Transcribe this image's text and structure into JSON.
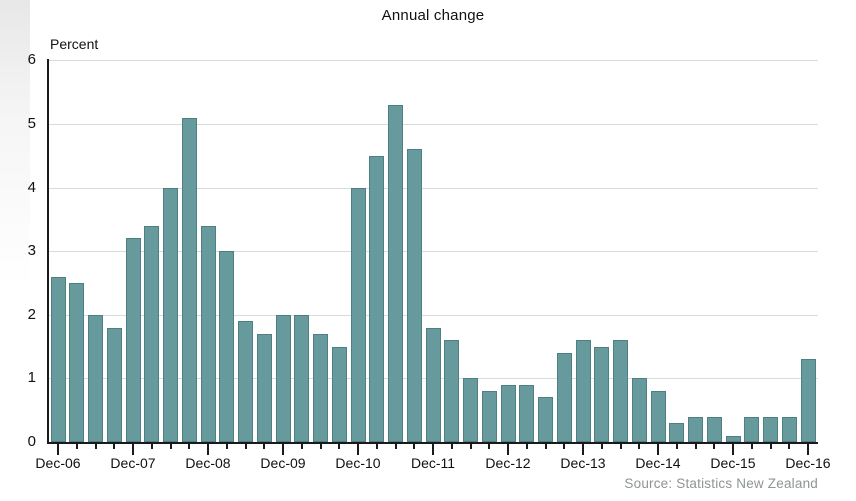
{
  "page": {
    "title": "Annual change",
    "source_note": "Source: Statistics New Zealand"
  },
  "chart_data": {
    "type": "bar",
    "title": "Annual change",
    "xlabel": "",
    "ylabel": "Percent",
    "ylim": [
      0,
      6
    ],
    "yticks": [
      0,
      1,
      2,
      3,
      4,
      5,
      6
    ],
    "grid": true,
    "legend_position": "none",
    "bar_color": "#679a9c",
    "bar_border_color": "#4e8083",
    "axis_color": "#1a1a1a",
    "gridline_color": "#d9dcdc",
    "x_major_tick_every": 4,
    "categories": [
      "Dec-06",
      "Mar-07",
      "Jun-07",
      "Sep-07",
      "Dec-07",
      "Mar-08",
      "Jun-08",
      "Sep-08",
      "Dec-08",
      "Mar-09",
      "Jun-09",
      "Sep-09",
      "Dec-09",
      "Mar-10",
      "Jun-10",
      "Sep-10",
      "Dec-10",
      "Mar-11",
      "Jun-11",
      "Sep-11",
      "Dec-11",
      "Mar-12",
      "Jun-12",
      "Sep-12",
      "Dec-12",
      "Mar-13",
      "Jun-13",
      "Sep-13",
      "Dec-13",
      "Mar-14",
      "Jun-14",
      "Sep-14",
      "Dec-14",
      "Mar-15",
      "Jun-15",
      "Sep-15",
      "Dec-15",
      "Mar-16",
      "Jun-16",
      "Sep-16",
      "Dec-16"
    ],
    "values": [
      2.6,
      2.5,
      2.0,
      1.8,
      3.2,
      3.4,
      4.0,
      5.1,
      3.4,
      3.0,
      1.9,
      1.7,
      2.0,
      2.0,
      1.7,
      1.5,
      4.0,
      4.5,
      5.3,
      4.6,
      1.8,
      1.6,
      1.0,
      0.8,
      0.9,
      0.9,
      0.7,
      1.4,
      1.6,
      1.5,
      1.6,
      1.0,
      0.8,
      0.3,
      0.4,
      0.4,
      0.1,
      0.4,
      0.4,
      0.4,
      1.3
    ],
    "x_major_labels": [
      "Dec-06",
      "Dec-07",
      "Dec-08",
      "Dec-09",
      "Dec-10",
      "Dec-11",
      "Dec-12",
      "Dec-13",
      "Dec-14",
      "Dec-15",
      "Dec-16"
    ],
    "source": "Source: Statistics New Zealand"
  }
}
